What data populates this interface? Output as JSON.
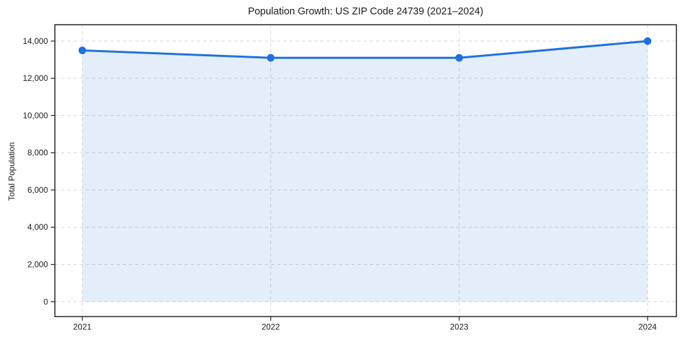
{
  "chart_data": {
    "type": "line",
    "title": "Population Growth: US ZIP Code 24739 (2021–2024)",
    "xlabel": "",
    "ylabel": "Total Population",
    "categories": [
      "2021",
      "2022",
      "2023",
      "2024"
    ],
    "series": [
      {
        "name": "Total Population",
        "values": [
          13500,
          13100,
          13100,
          14000
        ]
      }
    ],
    "ylim": [
      -800,
      14880
    ],
    "y_ticks": {
      "values": [
        0,
        2000,
        4000,
        6000,
        8000,
        10000,
        12000,
        14000
      ],
      "labels": [
        "0",
        "2,000",
        "4,000",
        "6,000",
        "8,000",
        "10,000",
        "12,000",
        "14,000"
      ]
    },
    "grid": true,
    "grid_style": "dashed",
    "legend": false,
    "marker": "circle",
    "colors": {
      "line": "#2070e0",
      "fill_opacity": "0.12",
      "grid": "#d7d7d7",
      "axis": "#222222",
      "text": "#1a1a1a",
      "background": "#ffffff"
    }
  }
}
